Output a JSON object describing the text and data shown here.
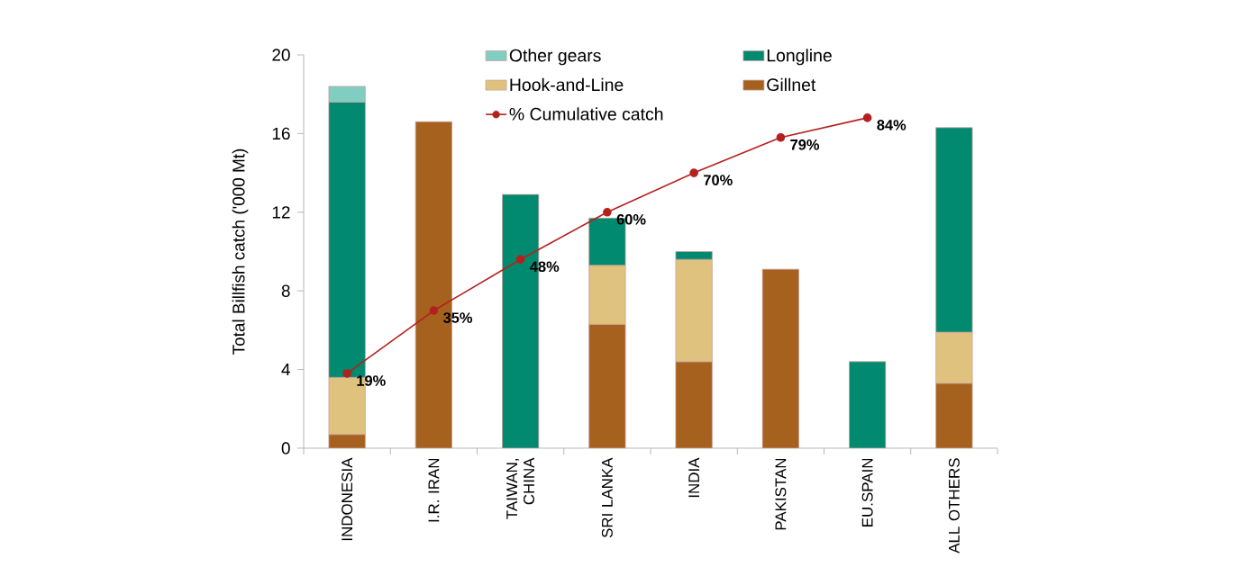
{
  "chart_data": {
    "type": "bar",
    "stacked": true,
    "ylabel": "Total Billfish catch ('000 Mt)",
    "categories": [
      "INDONESIA",
      "I.R. IRAN",
      "TAIWAN, CHINA",
      "SRI LANKA",
      "INDIA",
      "PAKISTAN",
      "EU.SPAIN",
      "ALL OTHERS"
    ],
    "series": [
      {
        "name": "Gillnet",
        "color": "#a6611f",
        "values": [
          0.7,
          16.6,
          null,
          6.3,
          4.4,
          9.1,
          null,
          3.3
        ]
      },
      {
        "name": "Hook-and-Line",
        "color": "#dfc27d",
        "values": [
          2.9,
          null,
          null,
          3.0,
          5.2,
          null,
          null,
          2.6
        ]
      },
      {
        "name": "Longline",
        "color": "#018a6f",
        "values": [
          14.0,
          null,
          12.9,
          2.4,
          0.4,
          null,
          4.4,
          10.4
        ]
      },
      {
        "name": "Other gears",
        "color": "#80cdc1",
        "values": [
          0.8,
          null,
          null,
          null,
          null,
          null,
          null,
          null
        ]
      },
      {
        "name": "% Cumulative catch",
        "type": "line",
        "axis": "y2",
        "color": "#b3211d",
        "marker": "circle",
        "values": [
          19,
          35,
          48,
          60,
          70,
          79,
          84,
          null
        ],
        "value_labels": [
          "19%",
          "35%",
          "48%",
          "60%",
          "70%",
          "79%",
          "84%",
          null
        ]
      }
    ],
    "ylim": [
      0,
      20
    ],
    "yticks": [
      0,
      4,
      8,
      12,
      16,
      20
    ],
    "y2lim": [
      0,
      100
    ],
    "legend": "top"
  }
}
